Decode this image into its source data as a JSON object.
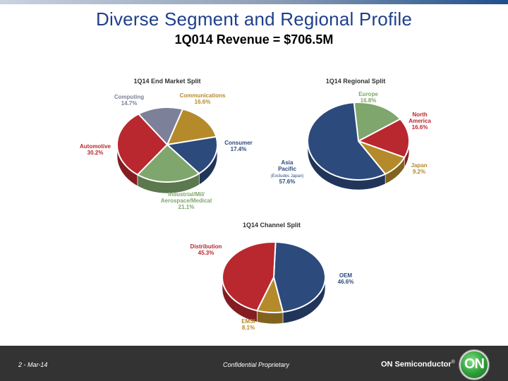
{
  "slide": {
    "title": "Diverse Segment and Regional Profile",
    "subtitle": "1Q014 Revenue = $706.5M"
  },
  "footer": {
    "date": "2 - Mar-14",
    "confidential": "Confidential Proprietary",
    "brand": "ON Semiconductor",
    "brand_mark": "®",
    "logo_text": "ON"
  },
  "chart_data": [
    {
      "type": "pie",
      "title": "1Q14 End Market Split",
      "slices": [
        {
          "label": "Communications",
          "value": 16.6,
          "value_label": "16.6%",
          "color": "#b58a2a"
        },
        {
          "label": "Consumer",
          "value": 17.4,
          "value_label": "17.4%",
          "color": "#2c4a7c"
        },
        {
          "label": "Industrial/Mil/ Aerospace/Medical",
          "value": 21.1,
          "value_label": "21.1%",
          "color": "#7fa66c"
        },
        {
          "label": "Automotive",
          "value": 30.2,
          "value_label": "30.2%",
          "color": "#b8282e"
        },
        {
          "label": "Computing",
          "value": 14.7,
          "value_label": "14.7%",
          "color": "#7c8098"
        }
      ]
    },
    {
      "type": "pie",
      "title": "1Q14 Regional Split",
      "slices": [
        {
          "label": "Europe",
          "value": 16.8,
          "value_label": "16.8%",
          "color": "#7fa66c"
        },
        {
          "label": "North America",
          "value": 16.6,
          "value_label": "16.6%",
          "color": "#b8282e"
        },
        {
          "label": "Japan",
          "value": 9.2,
          "value_label": "9.2%",
          "color": "#b58a2a"
        },
        {
          "label": "Asia Pacific",
          "sublabel": "(Excludes Japan)",
          "value": 57.6,
          "value_label": "57.6%",
          "color": "#2c4a7c"
        }
      ]
    },
    {
      "type": "pie",
      "title": "1Q14 Channel Split",
      "slices": [
        {
          "label": "OEM",
          "value": 46.6,
          "value_label": "46.6%",
          "color": "#2c4a7c"
        },
        {
          "label": "EMSI",
          "value": 8.1,
          "value_label": "8.1%",
          "color": "#b58a2a"
        },
        {
          "label": "Distribution",
          "value": 45.3,
          "value_label": "45.3%",
          "color": "#b8282e"
        }
      ]
    }
  ]
}
